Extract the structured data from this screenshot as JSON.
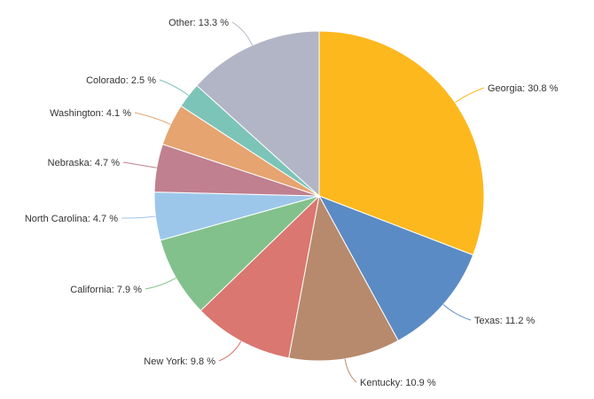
{
  "chart_data": {
    "type": "pie",
    "title": "",
    "slices": [
      {
        "label": "Georgia",
        "value": 30.8,
        "text": "Georgia: 30.8 %",
        "color": "#fdb81e"
      },
      {
        "label": "Texas",
        "value": 11.2,
        "text": "Texas: 11.2 %",
        "color": "#5b8bc4"
      },
      {
        "label": "Kentucky",
        "value": 10.9,
        "text": "Kentucky: 10.9 %",
        "color": "#b78a6d"
      },
      {
        "label": "New York",
        "value": 9.8,
        "text": "New York: 9.8 %",
        "color": "#d97770"
      },
      {
        "label": "California",
        "value": 7.9,
        "text": "California: 7.9 %",
        "color": "#83c18c"
      },
      {
        "label": "North Carolina",
        "value": 4.7,
        "text": "North Carolina: 4.7 %",
        "color": "#9dc7ea"
      },
      {
        "label": "Nebraska",
        "value": 4.7,
        "text": "Nebraska: 4.7 %",
        "color": "#c0808f"
      },
      {
        "label": "Washington",
        "value": 4.1,
        "text": "Washington: 4.1 %",
        "color": "#e6a471"
      },
      {
        "label": "Colorado",
        "value": 2.5,
        "text": "Colorado: 2.5 %",
        "color": "#7cc4b8"
      },
      {
        "label": "Other",
        "value": 13.3,
        "text": "Other: 13.3 %",
        "color": "#b2b5c6"
      }
    ]
  }
}
